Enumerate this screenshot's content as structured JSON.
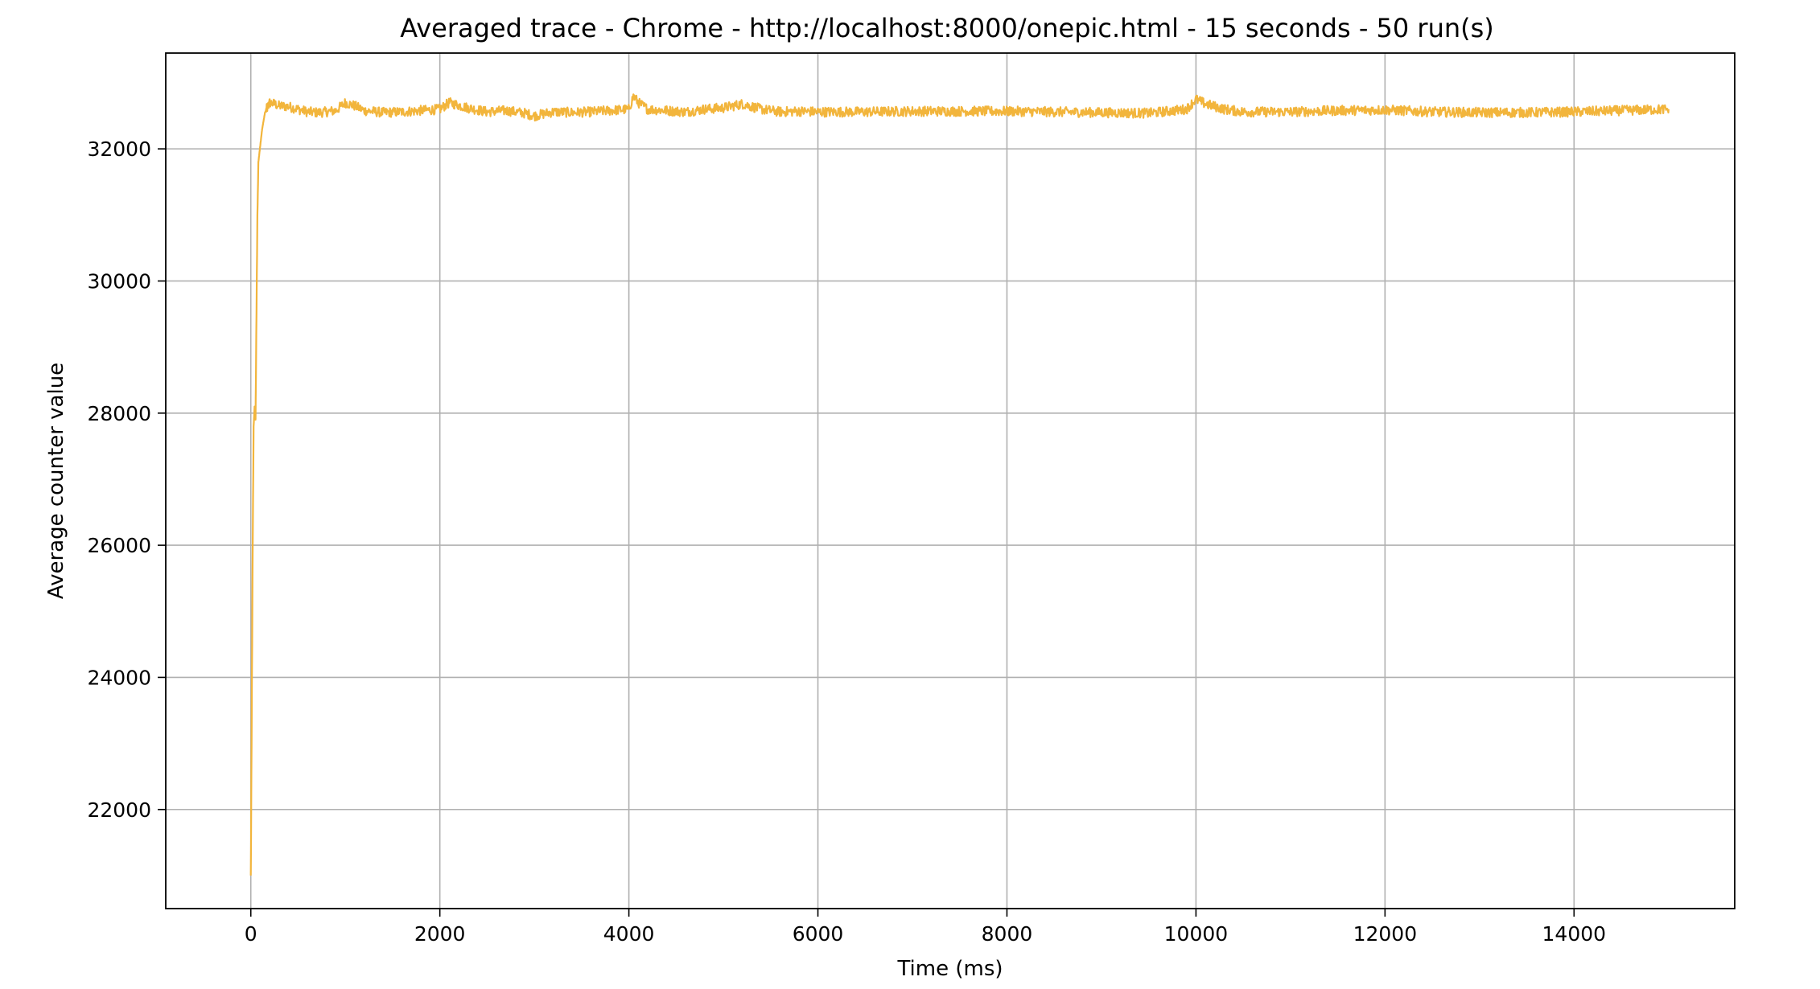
{
  "chart_data": {
    "type": "line",
    "title": "Averaged trace - Chrome - http://localhost:8000/onepic.html - 15 seconds - 50 run(s)",
    "xlabel": "Time (ms)",
    "ylabel": "Average counter value",
    "xlim": [
      -900,
      15700
    ],
    "ylim": [
      20500,
      33450
    ],
    "xticks": [
      0,
      2000,
      4000,
      6000,
      8000,
      10000,
      12000,
      14000
    ],
    "yticks": [
      22000,
      24000,
      26000,
      28000,
      30000,
      32000
    ],
    "grid": true,
    "line_color": "#f2b53c",
    "series": [
      {
        "x": [
          0,
          10,
          20,
          30,
          40,
          50,
          60,
          70,
          80,
          100,
          120,
          150,
          200,
          250,
          300,
          400,
          500,
          600,
          700,
          800,
          900,
          1000,
          1100,
          1200,
          1400,
          1600,
          1800,
          2000,
          2100,
          2300,
          2500,
          2700,
          2900,
          3000,
          3200,
          3400,
          3600,
          3800,
          4000,
          4050,
          4100,
          4200,
          4400,
          4600,
          4800,
          5000,
          5200,
          5400,
          5600,
          5800,
          6000,
          6500,
          7000,
          7500,
          8000,
          8500,
          9000,
          9500,
          9900,
          10000,
          10100,
          10300,
          10500,
          11000,
          11500,
          12000,
          12500,
          13000,
          13500,
          14000,
          14500,
          15000
        ],
        "values": [
          21000,
          23500,
          26000,
          27800,
          28100,
          27900,
          29500,
          31000,
          31800,
          32050,
          32300,
          32550,
          32700,
          32680,
          32650,
          32640,
          32600,
          32560,
          32550,
          32560,
          32580,
          32700,
          32650,
          32580,
          32550,
          32560,
          32580,
          32600,
          32700,
          32620,
          32560,
          32580,
          32540,
          32500,
          32560,
          32550,
          32560,
          32580,
          32600,
          32800,
          32700,
          32600,
          32580,
          32560,
          32600,
          32620,
          32680,
          32600,
          32560,
          32570,
          32560,
          32560,
          32570,
          32570,
          32570,
          32560,
          32550,
          32540,
          32600,
          32750,
          32680,
          32600,
          32560,
          32560,
          32580,
          32590,
          32560,
          32550,
          32550,
          32560,
          32580,
          32600
        ]
      }
    ]
  }
}
